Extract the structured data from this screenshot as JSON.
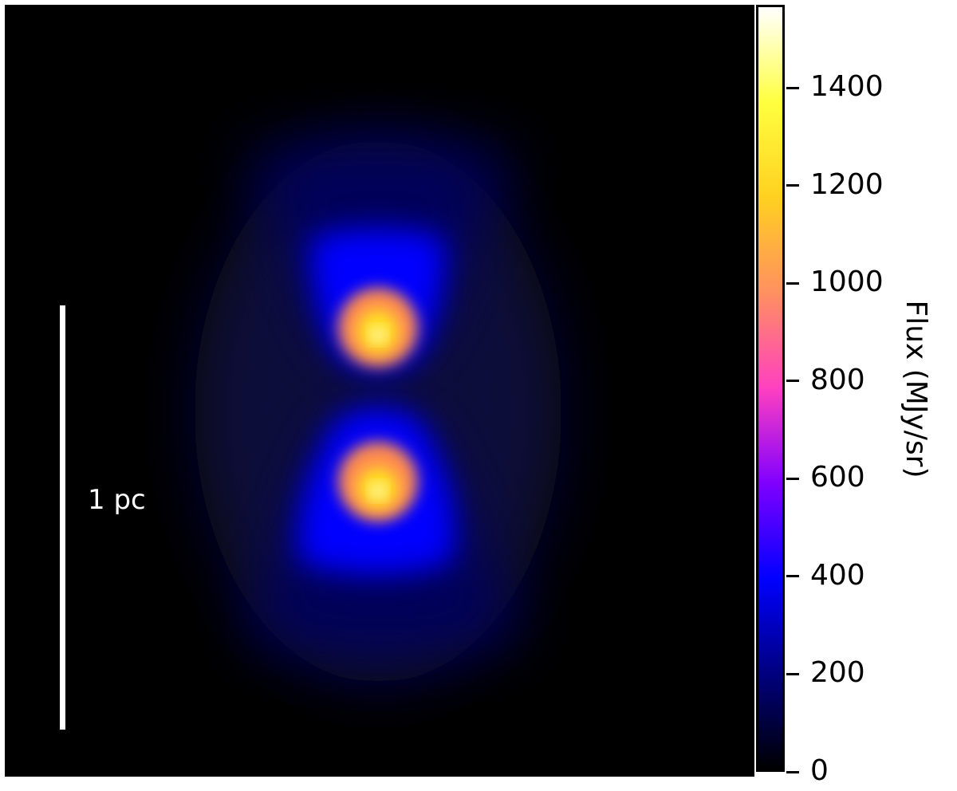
{
  "chart_data": {
    "type": "heatmap",
    "description_colormap": "gnuplot2",
    "colormap_stops": [
      "#000000",
      "#00007f",
      "#0000ff",
      "#7f00ff",
      "#ff40c0",
      "#ff9060",
      "#ffd020",
      "#ffff40",
      "#ffffff"
    ],
    "colorbar": {
      "range": [
        0,
        1570
      ],
      "ticks": [
        0,
        200,
        400,
        600,
        800,
        1000,
        1200,
        1400
      ],
      "tick_labels": [
        "0",
        "200",
        "400",
        "600",
        "800",
        "1000",
        "1200",
        "1400"
      ],
      "label": "Flux (MJy/sr)"
    },
    "lobes": [
      {
        "name": "upper",
        "peak_flux": 1570
      },
      {
        "name": "lower",
        "peak_flux": 1570
      }
    ],
    "scalebar": {
      "label": "1 pc"
    }
  }
}
